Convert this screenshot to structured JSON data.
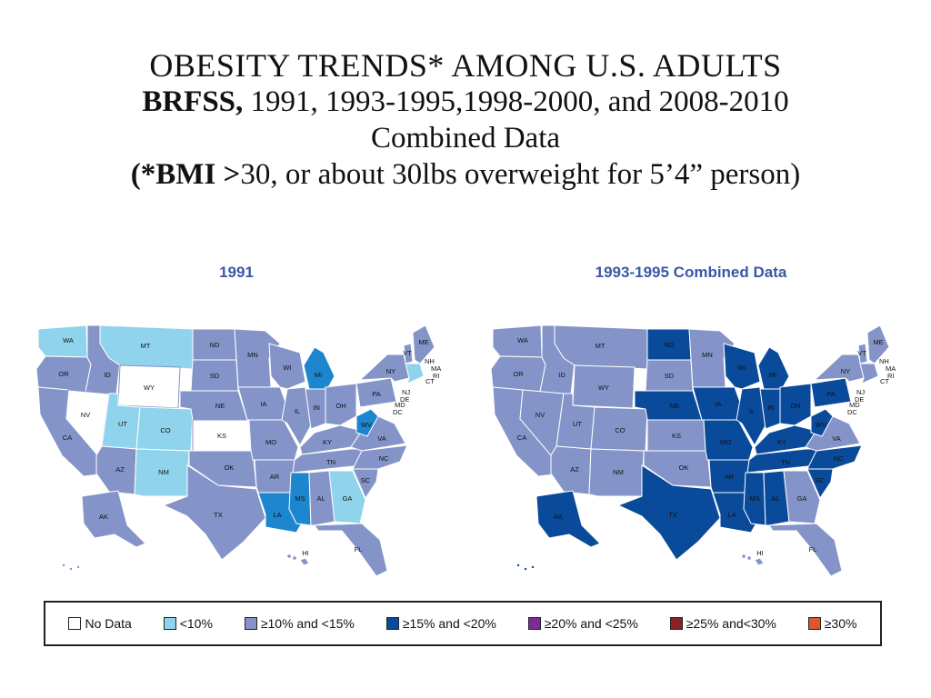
{
  "title": {
    "line1": "OBESITY TRENDS* AMONG U.S. ADULTS",
    "line2_bold": "BRFSS,",
    "line2_rest": " 1991, 1993-1995,1998-2000, and 2008-2010",
    "line3": "Combined Data",
    "line4_bold": "(*BMI >",
    "line4_rest": "30, or about 30lbs overweight for 5’4” person)"
  },
  "maps": [
    {
      "title": "1991",
      "states": {
        "WA": "lt",
        "OR": "mid",
        "ID": "mid",
        "MT": "lt",
        "WY": "none",
        "NV": "none",
        "UT": "lt",
        "CO": "lt",
        "AZ": "mid",
        "NM": "lt",
        "ND": "mid",
        "SD": "mid",
        "NE": "mid",
        "KS": "none",
        "OK": "mid",
        "TX": "mid",
        "MN": "mid",
        "IA": "mid",
        "MO": "mid",
        "AR": "mid",
        "LA": "dk",
        "WI": "mid",
        "IL": "mid",
        "MI": "dk",
        "IN": "mid",
        "OH": "mid",
        "KY": "mid",
        "TN": "mid",
        "MS": "dk",
        "AL": "mid",
        "GA": "lt",
        "FL": "mid",
        "SC": "mid",
        "NC": "mid",
        "VA": "mid",
        "WV": "dk",
        "PA": "mid",
        "NY": "mid",
        "ME": "mid",
        "VT": "mid",
        "NE_REG": "lt",
        "AK": "mid",
        "HI": "mid",
        "CA": "mid"
      }
    },
    {
      "title": "1993-1995 Combined Data",
      "states": {
        "WA": "mid",
        "OR": "mid",
        "ID": "mid",
        "MT": "mid",
        "WY": "mid",
        "NV": "mid",
        "UT": "mid",
        "CO": "mid",
        "AZ": "mid",
        "NM": "mid",
        "ND": "navy",
        "SD": "mid",
        "NE": "navy",
        "KS": "mid",
        "OK": "mid",
        "TX": "navy",
        "MN": "mid",
        "IA": "navy",
        "MO": "navy",
        "AR": "navy",
        "LA": "navy",
        "WI": "navy",
        "IL": "navy",
        "MI": "navy",
        "IN": "navy",
        "OH": "navy",
        "KY": "navy",
        "TN": "navy",
        "MS": "navy",
        "AL": "navy",
        "GA": "mid",
        "FL": "mid",
        "SC": "navy",
        "NC": "navy",
        "VA": "mid",
        "WV": "navy",
        "PA": "navy",
        "NY": "mid",
        "ME": "mid",
        "VT": "mid",
        "NE_REG": "mid",
        "AK": "navy",
        "HI": "mid",
        "CA": "mid"
      }
    }
  ],
  "state_labels": {
    "WA": "WA",
    "OR": "OR",
    "ID": "ID",
    "MT": "MT",
    "WY": "WY",
    "NV": "NV",
    "UT": "UT",
    "CO": "CO",
    "AZ": "AZ",
    "NM": "NM",
    "ND": "ND",
    "SD": "SD",
    "NE": "NE",
    "KS": "KS",
    "OK": "OK",
    "TX": "TX",
    "MN": "MN",
    "IA": "IA",
    "MO": "MO",
    "AR": "AR",
    "LA": "LA",
    "WI": "WI",
    "IL": "IL",
    "MI": "MI",
    "IN": "IN",
    "OH": "OH",
    "KY": "KY",
    "TN": "TN",
    "MS": "MS",
    "AL": "AL",
    "GA": "GA",
    "FL": "FL",
    "SC": "SC",
    "NC": "NC",
    "VA": "VA",
    "WV": "WV",
    "PA": "PA",
    "NY": "NY",
    "ME": "ME",
    "VT": "VT",
    "NH": "NH",
    "MA": "MA",
    "RI": "RI",
    "CT": "CT",
    "NJ": "NJ",
    "DE": "DE",
    "MD": "MD",
    "DC": "DC",
    "AK": "AK",
    "HI": "HI",
    "CA": "CA"
  },
  "colors": {
    "none": "#ffffff",
    "lt": "#8fd4ec",
    "mid": "#8494c8",
    "dk": "#1e86cf",
    "navy": "#0a4a9a",
    "purple": "#7a2d96",
    "maroon": "#8b2323",
    "orange": "#e0552a",
    "border": "#ffffff",
    "title_blue": "#3a58a6"
  },
  "legend": [
    {
      "label": "No Data",
      "color_key": "none"
    },
    {
      "label": "<10%",
      "color_key": "lt"
    },
    {
      "label": "≥10% and <15%",
      "color_key": "mid"
    },
    {
      "label": "≥15% and <20%",
      "color_key": "navy"
    },
    {
      "label": "≥20% and <25%",
      "color_key": "purple"
    },
    {
      "label": "≥25% and<30%",
      "color_key": "maroon"
    },
    {
      "label": "≥30%",
      "color_key": "orange"
    }
  ]
}
